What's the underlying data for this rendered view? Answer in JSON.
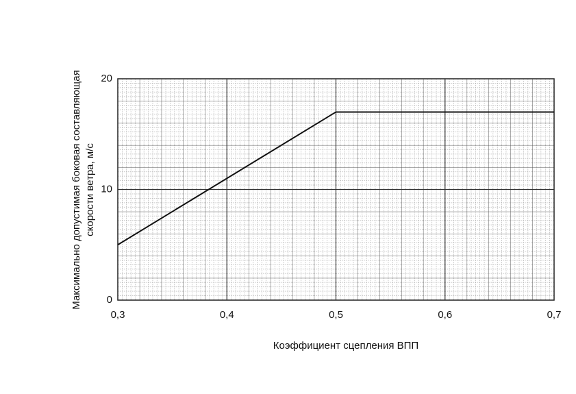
{
  "chart_data": {
    "type": "line",
    "ylabel": [
      "Максимально допустимая боковая составляющая",
      "скорости ветра, м/с"
    ],
    "xlabel": "Коэффициент сцепления ВПП",
    "x": [
      0.3,
      0.5,
      0.7
    ],
    "series": [
      {
        "color": "#111111",
        "values": [
          5,
          17,
          17
        ]
      }
    ],
    "xlim": [
      0.3,
      0.7
    ],
    "xticks": [
      {
        "value": 0.3,
        "label": "0,3"
      },
      {
        "value": 0.4,
        "label": "0,4"
      },
      {
        "value": 0.5,
        "label": "0,5"
      },
      {
        "value": 0.6,
        "label": "0,6"
      },
      {
        "value": 0.7,
        "label": "0,7"
      }
    ],
    "ylim": [
      0,
      20
    ],
    "yticks": [
      0,
      10,
      20
    ],
    "grid": true
  }
}
